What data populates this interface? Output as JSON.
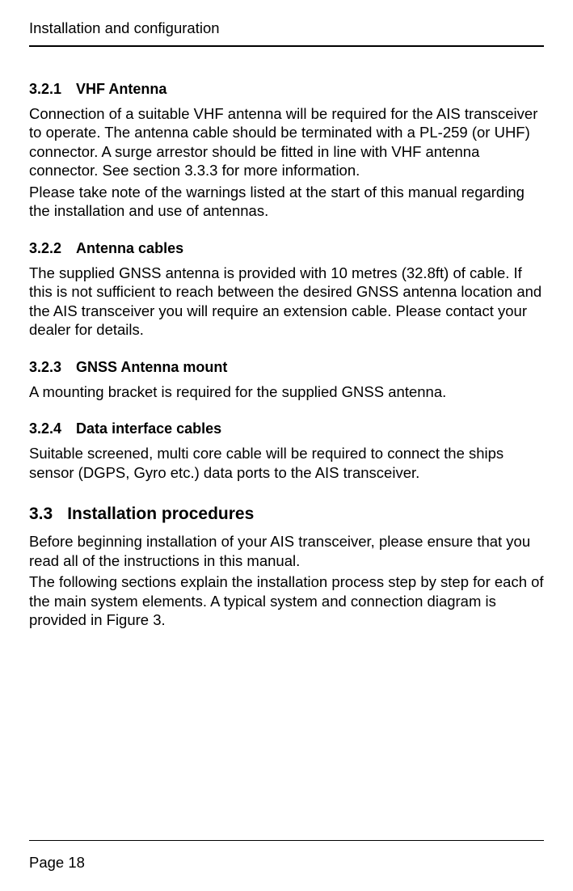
{
  "header": {
    "title": "Installation and configuration"
  },
  "sections": {
    "s321": {
      "number": "3.2.1",
      "title": "VHF Antenna",
      "para1": "Connection of a suitable VHF antenna will be required for the AIS transceiver to operate. The antenna cable should be terminated with a PL-259 (or UHF) connector. A surge arrestor should be fitted in line with VHF antenna connector. See section 3.3.3 for more information.",
      "para2": "Please take note of the warnings listed at the start of this manual regarding the installation and use of antennas."
    },
    "s322": {
      "number": "3.2.2",
      "title": "Antenna cables",
      "para1": "The supplied GNSS antenna is provided with 10 metres (32.8ft) of cable. If this is not sufficient to reach between the desired GNSS antenna location and the AIS transceiver you will require an extension cable. Please contact your dealer for details."
    },
    "s323": {
      "number": "3.2.3",
      "title": "GNSS Antenna mount",
      "para1": "A mounting bracket is required for the supplied GNSS antenna."
    },
    "s324": {
      "number": "3.2.4",
      "title": "Data interface cables",
      "para1": "Suitable screened, multi core cable will be required to connect the ships sensor (DGPS, Gyro etc.) data ports to the AIS transceiver."
    },
    "s33": {
      "number": "3.3",
      "title": "Installation procedures",
      "para1": "Before beginning installation of your AIS transceiver, please ensure that you read all of the instructions in this manual.",
      "para2": "The following sections explain the installation process step by step for each of the main system elements. A typical system and connection diagram is provided in Figure 3."
    }
  },
  "footer": {
    "page_label": "Page  18"
  }
}
